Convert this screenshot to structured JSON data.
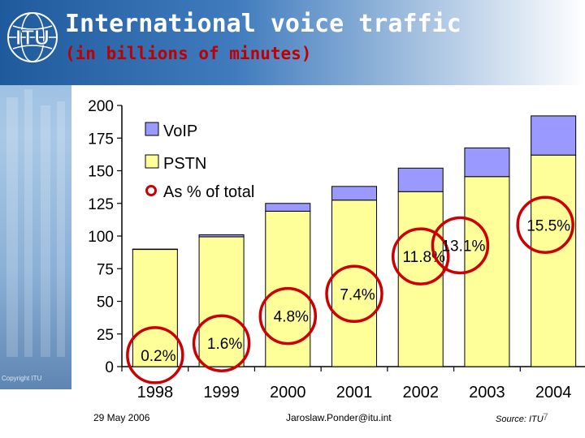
{
  "header": {
    "title": "International voice traffic",
    "subtitle": "(in billions of minutes)",
    "logo_text": "ITU"
  },
  "footer": {
    "date": "29 May 2006",
    "author": "Jaroslaw.Ponder@itu.int",
    "source": "Source: ITU",
    "page": "7",
    "copyright": "Copyright ITU"
  },
  "colors": {
    "pstn": "#ffff99",
    "voip": "#9999ff",
    "marker": "#cc0000",
    "header_blue": "#1f5a9c",
    "subtitle_red": "#c00000"
  },
  "chart_data": {
    "type": "bar",
    "stacked": true,
    "categories": [
      "1998",
      "1999",
      "2000",
      "2001",
      "2002",
      "2003",
      "2004"
    ],
    "series": [
      {
        "name": "PSTN",
        "values": [
          89.8,
          99.4,
          119,
          127.5,
          134,
          145.5,
          162
        ]
      },
      {
        "name": "VoIP",
        "values": [
          0.2,
          1.6,
          6,
          10.5,
          18,
          22,
          30
        ]
      }
    ],
    "share_series": {
      "name": "As % of total",
      "labels": [
        "0.2%",
        "1.6%",
        "4.8%",
        "7.4%",
        "11.8%",
        "13.1%",
        "15.5%"
      ],
      "values": [
        0.2,
        1.6,
        4.8,
        7.4,
        11.8,
        13.1,
        15.5
      ]
    },
    "yticks": [
      0,
      25,
      50,
      75,
      100,
      125,
      150,
      175,
      200
    ],
    "ylim": [
      0,
      200
    ],
    "legend": [
      "VoIP",
      "PSTN",
      "As % of total"
    ],
    "legend_position": "top-left",
    "grid": false
  }
}
